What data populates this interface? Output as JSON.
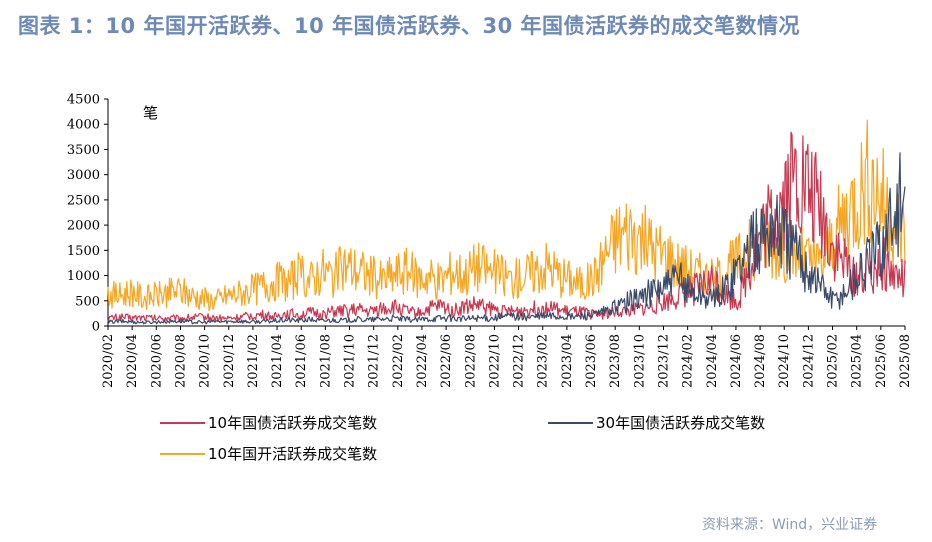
{
  "title": "图表 1：10 年国开活跃券、10 年国债活跃券、30 年国债活跃券的成交笔数情况",
  "source": "资料来源：Wind，兴业证券",
  "chart_data": {
    "type": "line",
    "ylabel": "笔",
    "ylim": [
      0,
      4500
    ],
    "yticks": [
      0,
      500,
      1000,
      1500,
      2000,
      2500,
      3000,
      3500,
      4000,
      4500
    ],
    "xlim": [
      0,
      67
    ],
    "xticks": [
      "2020/02",
      "2020/04",
      "2020/06",
      "2020/08",
      "2020/10",
      "2020/12",
      "2021/02",
      "2021/04",
      "2021/06",
      "2021/08",
      "2021/10",
      "2021/12",
      "2022/02",
      "2022/04",
      "2022/06",
      "2022/08",
      "2022/10",
      "2022/12",
      "2023/02",
      "2023/04",
      "2023/06",
      "2023/08",
      "2023/10",
      "2023/12",
      "2024/02",
      "2024/04",
      "2024/06",
      "2024/08",
      "2024/10",
      "2024/12",
      "2025/02",
      "2025/04",
      "2025/06",
      "2025/08"
    ],
    "legend_position": "bottom",
    "series": [
      {
        "name": "10年国债活跃券成交笔数",
        "color": "#c8384f",
        "x": [
          0,
          1,
          2,
          3,
          4,
          5,
          6,
          7,
          8,
          9,
          10,
          11,
          12,
          13,
          14,
          15,
          16,
          17,
          18,
          19,
          20,
          21,
          22,
          23,
          24,
          25,
          26,
          27,
          28,
          29,
          30,
          31,
          32,
          33,
          34,
          35,
          36,
          37,
          38,
          39,
          40,
          41,
          42,
          43,
          44,
          45,
          46,
          47,
          48,
          49,
          50,
          51,
          52,
          53,
          54,
          55,
          56,
          57,
          58,
          59,
          60,
          61,
          62,
          63,
          64,
          65,
          66,
          67
        ],
        "values": [
          150,
          180,
          160,
          170,
          150,
          160,
          150,
          170,
          180,
          160,
          150,
          170,
          200,
          220,
          180,
          250,
          230,
          260,
          240,
          280,
          300,
          320,
          280,
          350,
          380,
          300,
          250,
          350,
          400,
          300,
          380,
          420,
          350,
          300,
          280,
          320,
          350,
          380,
          300,
          280,
          260,
          220,
          250,
          280,
          300,
          350,
          400,
          500,
          600,
          700,
          800,
          900,
          600,
          500,
          1200,
          1800,
          2200,
          2700,
          3000,
          2600,
          2200,
          1500,
          1200,
          1000,
          1100,
          1300,
          1000,
          900
        ]
      },
      {
        "name": "30年国债活跃券成交笔数",
        "color": "#3a4a6a",
        "x": [
          0,
          1,
          2,
          3,
          4,
          5,
          6,
          7,
          8,
          9,
          10,
          11,
          12,
          13,
          14,
          15,
          16,
          17,
          18,
          19,
          20,
          21,
          22,
          23,
          24,
          25,
          26,
          27,
          28,
          29,
          30,
          31,
          32,
          33,
          34,
          35,
          36,
          37,
          38,
          39,
          40,
          41,
          42,
          43,
          44,
          45,
          46,
          47,
          48,
          49,
          50,
          51,
          52,
          53,
          54,
          55,
          56,
          57,
          58,
          59,
          60,
          61,
          62,
          63,
          64,
          65,
          66,
          67
        ],
        "values": [
          80,
          90,
          85,
          70,
          80,
          90,
          100,
          80,
          70,
          90,
          85,
          100,
          80,
          90,
          100,
          120,
          110,
          130,
          100,
          120,
          110,
          130,
          120,
          140,
          150,
          130,
          120,
          140,
          160,
          150,
          140,
          160,
          150,
          180,
          200,
          170,
          180,
          200,
          190,
          180,
          200,
          220,
          300,
          400,
          500,
          600,
          700,
          800,
          900,
          700,
          600,
          500,
          800,
          1200,
          1500,
          1800,
          2000,
          1700,
          1400,
          1100,
          800,
          500,
          700,
          1000,
          1300,
          1600,
          2200,
          2600
        ]
      },
      {
        "name": "10年国开活跃券成交笔数",
        "color": "#f5a623",
        "x": [
          0,
          1,
          2,
          3,
          4,
          5,
          6,
          7,
          8,
          9,
          10,
          11,
          12,
          13,
          14,
          15,
          16,
          17,
          18,
          19,
          20,
          21,
          22,
          23,
          24,
          25,
          26,
          27,
          28,
          29,
          30,
          31,
          32,
          33,
          34,
          35,
          36,
          37,
          38,
          39,
          40,
          41,
          42,
          43,
          44,
          45,
          46,
          47,
          48,
          49,
          50,
          51,
          52,
          53,
          54,
          55,
          56,
          57,
          58,
          59,
          60,
          61,
          62,
          63,
          64,
          65,
          66,
          67
        ],
        "values": [
          650,
          600,
          700,
          550,
          600,
          650,
          700,
          600,
          550,
          500,
          600,
          650,
          700,
          800,
          900,
          850,
          1000,
          900,
          1100,
          1000,
          1200,
          1100,
          1000,
          900,
          1000,
          1100,
          950,
          1000,
          900,
          1100,
          1000,
          1200,
          1100,
          1000,
          900,
          1000,
          1100,
          1200,
          1000,
          900,
          800,
          1000,
          1500,
          1800,
          1900,
          1700,
          1500,
          1400,
          1200,
          1100,
          1000,
          900,
          1100,
          1300,
          1500,
          1700,
          1600,
          1500,
          1400,
          1300,
          1200,
          1800,
          2200,
          2600,
          3000,
          2600,
          2200,
          1800
        ]
      }
    ]
  }
}
